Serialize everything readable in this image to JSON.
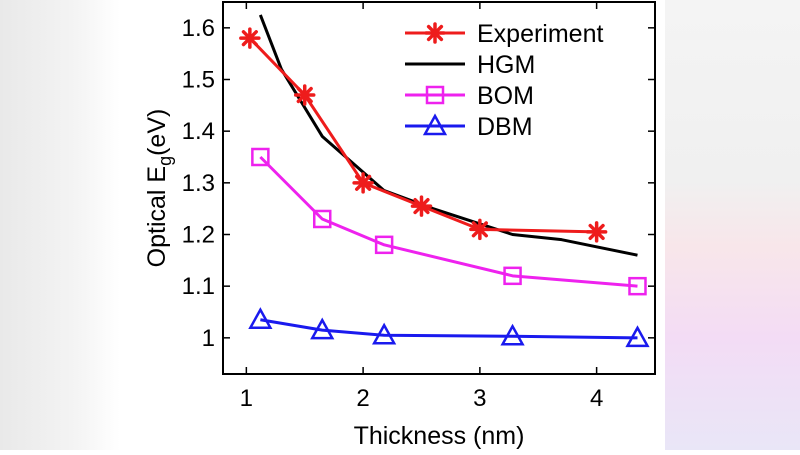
{
  "chart_data": {
    "type": "line",
    "title": "",
    "xlabel": "Thickness (nm)",
    "ylabel_main": "Optical E",
    "ylabel_sub": "g",
    "ylabel_unit": "(eV)",
    "xlim": [
      0.8,
      4.5
    ],
    "ylim": [
      0.93,
      1.65
    ],
    "x_ticks": [
      1,
      2,
      3,
      4
    ],
    "y_ticks": [
      1.0,
      1.1,
      1.2,
      1.3,
      1.4,
      1.5,
      1.6
    ],
    "y_tick_labels": [
      "1",
      "1.1",
      "1.2",
      "1.3",
      "1.4",
      "1.5",
      "1.6"
    ],
    "grid": false,
    "legend_position": "top-right",
    "series": [
      {
        "name": "Experiment",
        "color": "#ee1c1c",
        "marker": "asterisk",
        "x": [
          1.03,
          1.5,
          2.0,
          2.5,
          3.0,
          4.0
        ],
        "y": [
          1.58,
          1.47,
          1.3,
          1.255,
          1.21,
          1.205
        ]
      },
      {
        "name": "HGM",
        "color": "#000000",
        "marker": "none",
        "x": [
          1.12,
          1.3,
          1.65,
          2.18,
          2.6,
          3.28,
          3.7,
          4.35
        ],
        "y": [
          1.625,
          1.52,
          1.39,
          1.285,
          1.25,
          1.2,
          1.19,
          1.16
        ]
      },
      {
        "name": "BOM",
        "color": "#ee22ee",
        "marker": "square",
        "x": [
          1.12,
          1.65,
          2.18,
          3.28,
          4.35
        ],
        "y": [
          1.35,
          1.23,
          1.18,
          1.12,
          1.1
        ]
      },
      {
        "name": "DBM",
        "color": "#1a1aee",
        "marker": "triangle",
        "x": [
          1.12,
          1.65,
          2.18,
          3.28,
          4.35
        ],
        "y": [
          1.035,
          1.015,
          1.005,
          1.003,
          1.0
        ]
      }
    ]
  }
}
